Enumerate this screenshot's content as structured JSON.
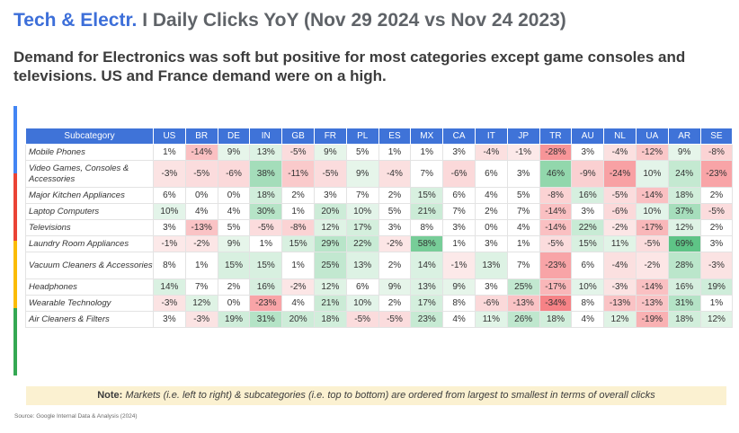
{
  "title_brand": "Tech & Electr.",
  "title_rest": "I Daily Clicks YoY (Nov 29 2024 vs Nov 24 2023)",
  "subtitle": "Demand for Electronics was soft but positive for most categories except game consoles and televisions. US and France demand were on a high.",
  "note_label": "Note:",
  "note_text": "Markets (i.e. left to right) & subcategories (i.e. top to bottom) are ordered from largest to smallest in terms of overall clicks",
  "source": "Source: Google Internal Data & Analysis (2024)",
  "colors": {
    "header_blue": "#3f73d8",
    "brand_blue": "#3d6fd9",
    "note_bg": "#fbf1d1",
    "google_blue": "#4285f4",
    "google_red": "#ea4335",
    "google_yellow": "#fbbc04",
    "google_green": "#34a853"
  },
  "chart_data": {
    "type": "heatmap",
    "row_header": "Subcategory",
    "columns": [
      "US",
      "BR",
      "DE",
      "IN",
      "GB",
      "FR",
      "PL",
      "ES",
      "MX",
      "CA",
      "IT",
      "JP",
      "TR",
      "AU",
      "NL",
      "UA",
      "AR",
      "SE"
    ],
    "rows": [
      {
        "name": "Mobile Phones",
        "values": [
          1,
          -14,
          9,
          13,
          -5,
          9,
          5,
          1,
          1,
          3,
          -4,
          -1,
          -28,
          3,
          -4,
          -12,
          9,
          -8
        ]
      },
      {
        "name": "Video Games, Consoles & Accessories",
        "values": [
          -3,
          -5,
          -6,
          38,
          -11,
          -5,
          9,
          -4,
          7,
          -6,
          6,
          3,
          46,
          -9,
          -24,
          10,
          24,
          -23
        ]
      },
      {
        "name": "Major Kitchen Appliances",
        "values": [
          6,
          0,
          0,
          18,
          2,
          3,
          7,
          2,
          15,
          6,
          4,
          5,
          -8,
          16,
          -5,
          -14,
          18,
          2
        ]
      },
      {
        "name": "Laptop Computers",
        "values": [
          10,
          4,
          4,
          30,
          1,
          20,
          10,
          5,
          21,
          7,
          2,
          7,
          -14,
          3,
          -6,
          10,
          37,
          -5
        ]
      },
      {
        "name": "Televisions",
        "values": [
          3,
          -13,
          5,
          -5,
          -8,
          12,
          17,
          3,
          8,
          3,
          0,
          4,
          -14,
          22,
          -2,
          -17,
          12,
          2
        ]
      },
      {
        "name": "Laundry Room Appliances",
        "values": [
          -1,
          -2,
          9,
          1,
          15,
          29,
          22,
          -2,
          58,
          1,
          3,
          1,
          -5,
          15,
          11,
          -5,
          69,
          3
        ]
      },
      {
        "name": "Vacuum Cleaners & Accessories",
        "values": [
          8,
          1,
          15,
          15,
          1,
          25,
          13,
          2,
          14,
          -1,
          13,
          7,
          -23,
          6,
          -4,
          -2,
          28,
          -3
        ]
      },
      {
        "name": "Headphones",
        "values": [
          14,
          7,
          2,
          16,
          -2,
          12,
          6,
          9,
          13,
          9,
          3,
          25,
          -17,
          10,
          -3,
          -14,
          16,
          19
        ]
      },
      {
        "name": "Wearable Technology",
        "values": [
          -3,
          12,
          0,
          -23,
          4,
          21,
          10,
          2,
          17,
          8,
          -6,
          -13,
          -34,
          8,
          -13,
          -13,
          31,
          1
        ]
      },
      {
        "name": "Air Cleaners & Filters",
        "values": [
          3,
          -3,
          19,
          31,
          20,
          18,
          -5,
          -5,
          23,
          4,
          11,
          26,
          18,
          4,
          12,
          -19,
          18,
          12
        ]
      }
    ],
    "unit": "%"
  }
}
